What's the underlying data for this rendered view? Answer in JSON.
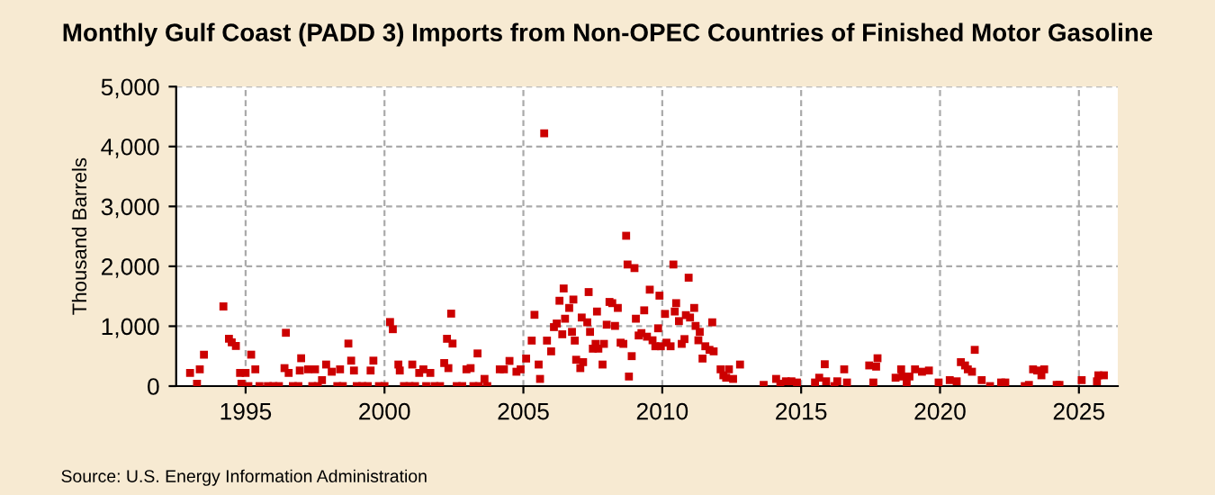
{
  "chart_data": {
    "type": "scatter",
    "title": "Monthly Gulf Coast (PADD 3) Imports from Non-OPEC Countries of Finished Motor Gasoline",
    "ylabel": "Thousand Barrels",
    "annotations": [
      "Source: U.S. Energy Information Administration"
    ],
    "xlim": [
      1992.5,
      2026.4
    ],
    "xticks": [
      1995,
      2000,
      2005,
      2010,
      2015,
      2020,
      2025
    ],
    "ylim": [
      0,
      5000
    ],
    "yticks": [
      0,
      {
        "value": 1000,
        "label": "1,000"
      },
      {
        "value": 2000,
        "label": "2,000"
      },
      {
        "value": 3000,
        "label": "3,000"
      },
      {
        "value": 4000,
        "label": "4,000"
      },
      {
        "value": 5000,
        "label": "5,000"
      }
    ],
    "grid": true,
    "marker": "square",
    "legend": false,
    "series": [
      {
        "color": "#cc0000",
        "x": [
          1993.0,
          1993.25,
          1993.35,
          1993.5,
          1994.2,
          1994.4,
          1994.5,
          1994.65,
          1994.8,
          1994.85,
          1995.0,
          1995.1,
          1995.2,
          1995.35,
          1995.5,
          1995.8,
          1996.0,
          1996.2,
          1996.4,
          1996.45,
          1996.55,
          1996.7,
          1996.9,
          1996.95,
          1997.0,
          1997.25,
          1997.4,
          1997.5,
          1997.6,
          1997.75,
          1997.9,
          1998.1,
          1998.3,
          1998.4,
          1998.5,
          1998.7,
          1998.8,
          1998.9,
          1999.0,
          1999.2,
          1999.4,
          1999.5,
          1999.6,
          1999.8,
          2000.0,
          2000.2,
          2000.3,
          2000.5,
          2000.55,
          2000.7,
          2000.9,
          2001.0,
          2001.1,
          2001.25,
          2001.4,
          2001.5,
          2001.65,
          2001.8,
          2002.0,
          2002.15,
          2002.25,
          2002.3,
          2002.4,
          2002.45,
          2002.6,
          2002.8,
          2002.95,
          2003.1,
          2003.2,
          2003.35,
          2003.4,
          2003.6,
          2003.7,
          2004.15,
          2004.3,
          2004.5,
          2004.75,
          2004.9,
          2005.1,
          2005.3,
          2005.4,
          2005.55,
          2005.6,
          2005.75,
          2005.85,
          2006.0,
          2006.1,
          2006.2,
          2006.3,
          2006.4,
          2006.45,
          2006.5,
          2006.65,
          2006.75,
          2006.8,
          2006.85,
          2006.9,
          2007.05,
          2007.1,
          2007.15,
          2007.3,
          2007.35,
          2007.4,
          2007.5,
          2007.6,
          2007.65,
          2007.7,
          2007.85,
          2007.9,
          2008.0,
          2008.1,
          2008.2,
          2008.3,
          2008.4,
          2008.5,
          2008.6,
          2008.7,
          2008.75,
          2008.8,
          2008.9,
          2009.0,
          2009.05,
          2009.15,
          2009.25,
          2009.35,
          2009.45,
          2009.55,
          2009.65,
          2009.75,
          2009.85,
          2009.9,
          2009.95,
          2010.1,
          2010.15,
          2010.3,
          2010.4,
          2010.45,
          2010.5,
          2010.6,
          2010.7,
          2010.8,
          2010.85,
          2010.95,
          2011.0,
          2011.15,
          2011.2,
          2011.3,
          2011.35,
          2011.45,
          2011.55,
          2011.7,
          2011.8,
          2011.85,
          2012.1,
          2012.2,
          2012.3,
          2012.4,
          2012.55,
          2012.8,
          2013.65,
          2014.1,
          2014.25,
          2014.45,
          2014.65,
          2014.85,
          2015.5,
          2015.65,
          2015.85,
          2015.9,
          2016.2,
          2016.3,
          2016.55,
          2016.65,
          2017.45,
          2017.6,
          2017.7,
          2017.75,
          2018.4,
          2018.6,
          2018.65,
          2018.8,
          2018.9,
          2019.1,
          2019.35,
          2019.6,
          2019.95,
          2020.35,
          2020.6,
          2020.75,
          2020.9,
          2021.0,
          2021.15,
          2021.25,
          2021.5,
          2021.8,
          2022.2,
          2022.35,
          2023.05,
          2023.2,
          2023.35,
          2023.5,
          2023.65,
          2023.75,
          2024.2,
          2024.3,
          2025.1,
          2025.65,
          2025.7,
          2025.9
        ],
        "values": [
          220,
          40,
          280,
          525,
          1330,
          790,
          730,
          670,
          220,
          40,
          220,
          0,
          525,
          280,
          0,
          0,
          0,
          0,
          300,
          890,
          220,
          0,
          0,
          260,
          465,
          280,
          0,
          280,
          0,
          100,
          360,
          240,
          0,
          280,
          0,
          710,
          425,
          260,
          0,
          0,
          0,
          260,
          425,
          0,
          0,
          1070,
          950,
          360,
          260,
          0,
          0,
          360,
          0,
          220,
          280,
          0,
          220,
          0,
          0,
          385,
          790,
          300,
          1210,
          710,
          0,
          0,
          280,
          300,
          0,
          545,
          0,
          120,
          0,
          280,
          280,
          420,
          240,
          280,
          460,
          760,
          1190,
          360,
          120,
          4220,
          760,
          580,
          985,
          1045,
          1425,
          865,
          1630,
          1125,
          1305,
          905,
          1445,
          760,
          440,
          300,
          1145,
          400,
          1065,
          1570,
          905,
          625,
          705,
          1245,
          625,
          360,
          705,
          1025,
          1405,
          1385,
          1005,
          1305,
          725,
          705,
          2510,
          2030,
          160,
          500,
          1970,
          1125,
          845,
          885,
          1265,
          825,
          1610,
          765,
          665,
          965,
          1510,
          665,
          1205,
          725,
          665,
          2030,
          1245,
          1385,
          1085,
          705,
          785,
          1185,
          1810,
          1145,
          1305,
          1005,
          765,
          905,
          460,
          665,
          605,
          1065,
          580,
          280,
          180,
          140,
          280,
          120,
          360,
          20,
          120,
          40,
          80,
          80,
          60,
          60,
          140,
          365,
          80,
          0,
          80,
          280,
          60,
          345,
          60,
          325,
          465,
          140,
          280,
          160,
          60,
          160,
          280,
          240,
          260,
          60,
          100,
          80,
          400,
          345,
          280,
          240,
          605,
          100,
          0,
          60,
          60,
          0,
          20,
          280,
          260,
          180,
          280,
          20,
          20,
          100,
          80,
          180,
          180
        ]
      }
    ]
  }
}
